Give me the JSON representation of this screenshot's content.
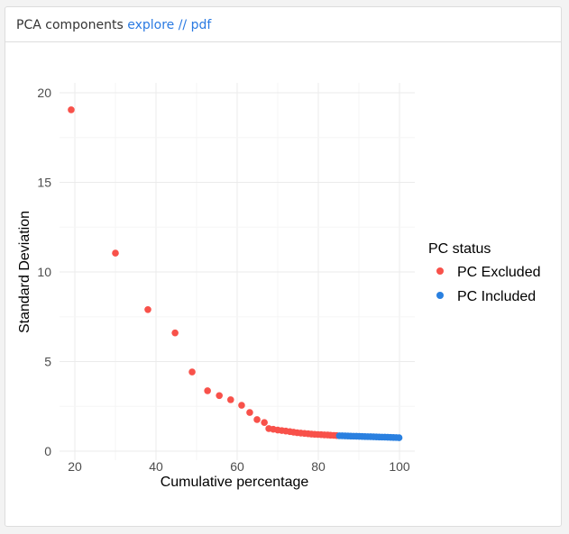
{
  "header": {
    "title": "PCA components",
    "link_explore": "explore",
    "separator": "//",
    "link_pdf": "pdf"
  },
  "colors": {
    "excluded": "#f8514a",
    "included": "#2a80e0"
  },
  "chart_data": {
    "type": "scatter",
    "xlabel": "Cumulative percentage",
    "ylabel": "Standard Deviation",
    "xlim": [
      17,
      103
    ],
    "ylim": [
      0,
      20.5
    ],
    "xticks": [
      20,
      40,
      60,
      80,
      100
    ],
    "yticks": [
      0,
      5,
      10,
      15,
      20
    ],
    "grid": true,
    "legend_position": "right",
    "legend_title": "PC status",
    "series": [
      {
        "name": "PC Excluded",
        "x": [
          19.1,
          30.0,
          38.0,
          44.7,
          48.9,
          52.7,
          55.6,
          58.4,
          61.1,
          63.1,
          64.9,
          66.7,
          67.8,
          68.9,
          70.0,
          71.0,
          72.0,
          73.0,
          73.9,
          74.8,
          75.7,
          76.6,
          77.5,
          78.3,
          79.1,
          79.9,
          80.7,
          81.5,
          82.3,
          83.0,
          83.8,
          84.5
        ],
        "y": [
          19.05,
          11.05,
          7.9,
          6.6,
          4.42,
          3.37,
          3.1,
          2.87,
          2.56,
          2.16,
          1.76,
          1.6,
          1.26,
          1.22,
          1.18,
          1.15,
          1.12,
          1.09,
          1.06,
          1.03,
          1.01,
          0.99,
          0.97,
          0.95,
          0.94,
          0.93,
          0.92,
          0.91,
          0.9,
          0.89,
          0.88,
          0.87
        ]
      },
      {
        "name": "PC Included",
        "x": [
          85.2,
          85.9,
          86.6,
          87.3,
          88.0,
          88.7,
          89.4,
          90.1,
          90.8,
          91.5,
          92.2,
          92.9,
          93.6,
          94.3,
          95.0,
          95.7,
          96.4,
          97.1,
          97.8,
          98.5,
          99.2,
          99.9
        ],
        "y": [
          0.86,
          0.855,
          0.85,
          0.845,
          0.84,
          0.835,
          0.83,
          0.825,
          0.82,
          0.815,
          0.81,
          0.805,
          0.8,
          0.795,
          0.79,
          0.785,
          0.78,
          0.775,
          0.77,
          0.765,
          0.76,
          0.75
        ]
      }
    ]
  }
}
